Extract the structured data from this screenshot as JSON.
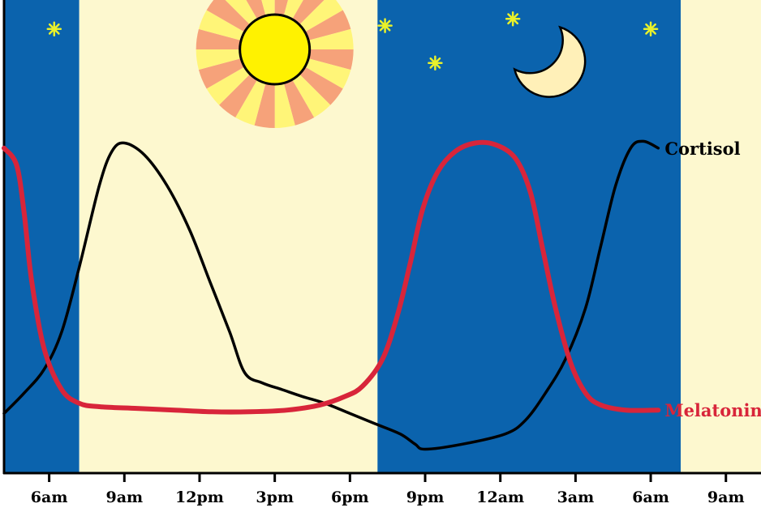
{
  "chart_data": {
    "type": "line",
    "title": "",
    "xlabel": "",
    "ylabel": "",
    "x_ticks": [
      "6am",
      "9am",
      "12pm",
      "3pm",
      "6pm",
      "9pm",
      "12am",
      "3am",
      "6am",
      "9am"
    ],
    "x_range_hours": [
      4.2,
      34.4
    ],
    "y_range": [
      0,
      100
    ],
    "grid": false,
    "legend": "inline labels at right end of lines",
    "bands": [
      {
        "kind": "night",
        "start": 4.2,
        "end": 7.2
      },
      {
        "kind": "day",
        "start": 7.2,
        "end": 19.1
      },
      {
        "kind": "night",
        "start": 19.1,
        "end": 31.2
      },
      {
        "kind": "day",
        "start": 31.2,
        "end": 34.4
      }
    ],
    "series": [
      {
        "name": "Cortisol",
        "color": "#000000",
        "points": [
          [
            4.2,
            13
          ],
          [
            5.0,
            19
          ],
          [
            5.8,
            26
          ],
          [
            6.5,
            37
          ],
          [
            7.2,
            56
          ],
          [
            8.0,
            80
          ],
          [
            8.5,
            90
          ],
          [
            9.0,
            92.5
          ],
          [
            9.8,
            89
          ],
          [
            10.7,
            80
          ],
          [
            11.6,
            67
          ],
          [
            12.4,
            52
          ],
          [
            13.2,
            37
          ],
          [
            13.8,
            25
          ],
          [
            14.5,
            22
          ],
          [
            15.3,
            20
          ],
          [
            16.1,
            18
          ],
          [
            17.0,
            16
          ],
          [
            18.0,
            13
          ],
          [
            19.0,
            10
          ],
          [
            20.0,
            7
          ],
          [
            20.6,
            4
          ],
          [
            21.0,
            2.5
          ],
          [
            22.5,
            4
          ],
          [
            24.2,
            7
          ],
          [
            25.0,
            11
          ],
          [
            25.8,
            19
          ],
          [
            26.6,
            29
          ],
          [
            27.4,
            44
          ],
          [
            28.0,
            62
          ],
          [
            28.6,
            80
          ],
          [
            29.2,
            91
          ],
          [
            29.7,
            93
          ],
          [
            30.3,
            91
          ]
        ]
      },
      {
        "name": "Melatonin",
        "color": "#d8253a",
        "points": [
          [
            4.2,
            91
          ],
          [
            4.7,
            86
          ],
          [
            5.0,
            72
          ],
          [
            5.3,
            52
          ],
          [
            5.8,
            32
          ],
          [
            6.5,
            20
          ],
          [
            7.2,
            16
          ],
          [
            8.0,
            15
          ],
          [
            9.5,
            14.5
          ],
          [
            11.0,
            14
          ],
          [
            12.5,
            13.5
          ],
          [
            14.0,
            13.5
          ],
          [
            15.5,
            14
          ],
          [
            16.8,
            15.5
          ],
          [
            17.8,
            18
          ],
          [
            18.5,
            21
          ],
          [
            19.3,
            29
          ],
          [
            19.9,
            42
          ],
          [
            20.4,
            57
          ],
          [
            20.9,
            73
          ],
          [
            21.5,
            84
          ],
          [
            22.2,
            90
          ],
          [
            23.0,
            92.5
          ],
          [
            23.8,
            92
          ],
          [
            24.6,
            88
          ],
          [
            25.2,
            78
          ],
          [
            25.7,
            61
          ],
          [
            26.2,
            44
          ],
          [
            26.8,
            28
          ],
          [
            27.4,
            19
          ],
          [
            28.0,
            15.5
          ],
          [
            29.0,
            14
          ],
          [
            30.3,
            14
          ]
        ]
      }
    ],
    "annotations": {
      "sun": {
        "x": 15.0,
        "y": 120
      },
      "moon": {
        "x": 25.8,
        "y": 117
      },
      "stars": [
        [
          6.2,
          126
        ],
        [
          19.4,
          127
        ],
        [
          21.4,
          116
        ],
        [
          24.5,
          129
        ],
        [
          30.0,
          126
        ]
      ]
    }
  },
  "style": {
    "night_color": "#0b63ad",
    "day_color": "#fdf8cf",
    "sun_color": "#fff200",
    "sun_ray_a": "#f6a27a",
    "sun_ray_b": "#fff578",
    "moon_color": "#fff0b8",
    "star_color": "#e9f12a"
  }
}
